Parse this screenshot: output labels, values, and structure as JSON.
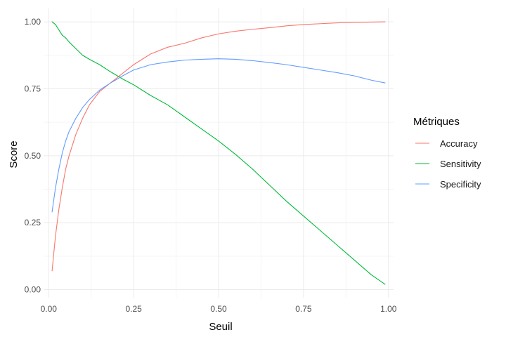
{
  "chart_data": {
    "type": "line",
    "xlabel": "Seuil",
    "ylabel": "Score",
    "xlim": [
      -0.015,
      1.015
    ],
    "ylim": [
      -0.03,
      1.05
    ],
    "x_ticks": [
      0.0,
      0.25,
      0.5,
      0.75,
      1.0
    ],
    "x_tick_labels": [
      "0.00",
      "0.25",
      "0.50",
      "0.75",
      "1.00"
    ],
    "y_ticks": [
      0.0,
      0.25,
      0.5,
      0.75,
      1.0
    ],
    "y_tick_labels": [
      "0.00",
      "0.25",
      "0.50",
      "0.75",
      "1.00"
    ],
    "grid": true,
    "legend": {
      "title": "Métriques",
      "position": "right"
    },
    "x": [
      0.01,
      0.02,
      0.03,
      0.04,
      0.05,
      0.06,
      0.08,
      0.1,
      0.12,
      0.15,
      0.18,
      0.2,
      0.22,
      0.25,
      0.3,
      0.35,
      0.4,
      0.45,
      0.5,
      0.55,
      0.6,
      0.65,
      0.7,
      0.75,
      0.8,
      0.85,
      0.9,
      0.95,
      0.99
    ],
    "series": [
      {
        "name": "Accuracy",
        "color": "#F8766D",
        "values": [
          0.07,
          0.2,
          0.3,
          0.38,
          0.45,
          0.5,
          0.58,
          0.64,
          0.69,
          0.74,
          0.77,
          0.79,
          0.81,
          0.84,
          0.88,
          0.905,
          0.92,
          0.94,
          0.955,
          0.965,
          0.972,
          0.978,
          0.985,
          0.99,
          0.993,
          0.996,
          0.998,
          0.999,
          1.0
        ]
      },
      {
        "name": "Sensitivity",
        "color": "#00BA38",
        "values": [
          1.0,
          0.99,
          0.97,
          0.95,
          0.94,
          0.925,
          0.9,
          0.875,
          0.86,
          0.84,
          0.815,
          0.8,
          0.785,
          0.765,
          0.725,
          0.69,
          0.645,
          0.6,
          0.555,
          0.505,
          0.45,
          0.39,
          0.33,
          0.275,
          0.22,
          0.165,
          0.11,
          0.055,
          0.02
        ]
      },
      {
        "name": "Specificity",
        "color": "#619CFF",
        "values": [
          0.29,
          0.38,
          0.45,
          0.51,
          0.555,
          0.59,
          0.64,
          0.68,
          0.71,
          0.745,
          0.77,
          0.785,
          0.8,
          0.82,
          0.84,
          0.85,
          0.857,
          0.86,
          0.862,
          0.86,
          0.855,
          0.848,
          0.84,
          0.83,
          0.82,
          0.81,
          0.798,
          0.782,
          0.772
        ]
      }
    ]
  },
  "colors": {
    "grid_major": "#EBEBEB",
    "grid_minor": "#F5F5F5"
  }
}
